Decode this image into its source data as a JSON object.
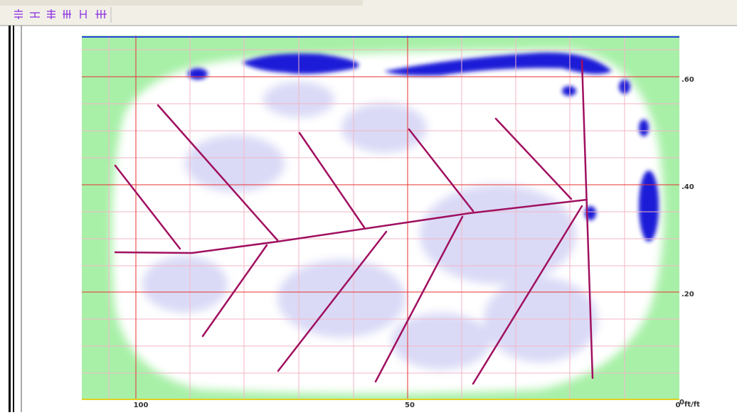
{
  "plot": {
    "x_tick_labels": [
      "100",
      "50",
      "0"
    ],
    "y_tick_labels": [
      ".60",
      ".40",
      ".20",
      "0"
    ],
    "unit": "ft/ft"
  }
}
